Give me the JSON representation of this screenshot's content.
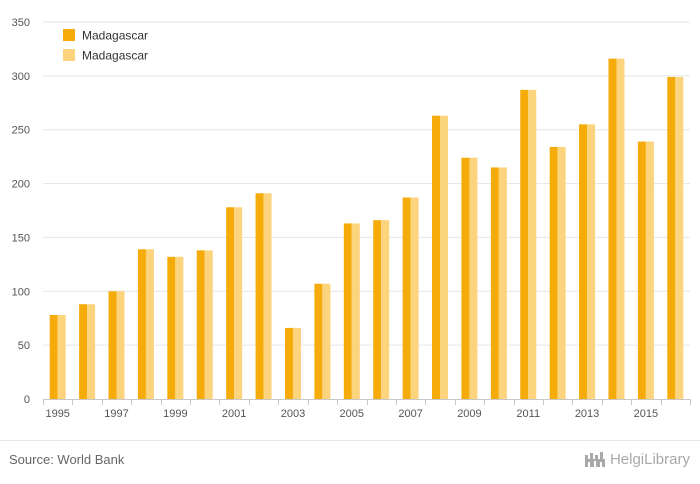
{
  "chart_data": {
    "type": "bar",
    "categories": [
      "1995",
      "1996",
      "1997",
      "1998",
      "1999",
      "2000",
      "2001",
      "2002",
      "2003",
      "2004",
      "2005",
      "2006",
      "2007",
      "2008",
      "2009",
      "2010",
      "2011",
      "2012",
      "2013",
      "2014",
      "2015",
      "2016"
    ],
    "x_tick_labels": [
      "1995",
      "1997",
      "1999",
      "2001",
      "2003",
      "2005",
      "2007",
      "2009",
      "2011",
      "2013",
      "2015"
    ],
    "series": [
      {
        "name": "Madagascar",
        "color": "#f5ab0a",
        "values": [
          78,
          88,
          100,
          139,
          132,
          138,
          178,
          191,
          66,
          107,
          163,
          166,
          187,
          263,
          224,
          215,
          287,
          234,
          255,
          316,
          239,
          299
        ]
      },
      {
        "name": "Madagascar",
        "color": "#fdd47e",
        "values": [
          78,
          88,
          100,
          139,
          132,
          138,
          178,
          191,
          66,
          107,
          163,
          166,
          187,
          263,
          224,
          215,
          287,
          234,
          255,
          316,
          239,
          299
        ]
      }
    ],
    "ylim": [
      0,
      350
    ],
    "yticks": [
      0,
      50,
      100,
      150,
      200,
      250,
      300,
      350
    ],
    "grid": true,
    "legend_position": "top-left"
  },
  "footer": {
    "source": "Source: World Bank",
    "logo_text": "HelgiLibrary",
    "logo_icon": "helgi-library-castle-icon"
  }
}
